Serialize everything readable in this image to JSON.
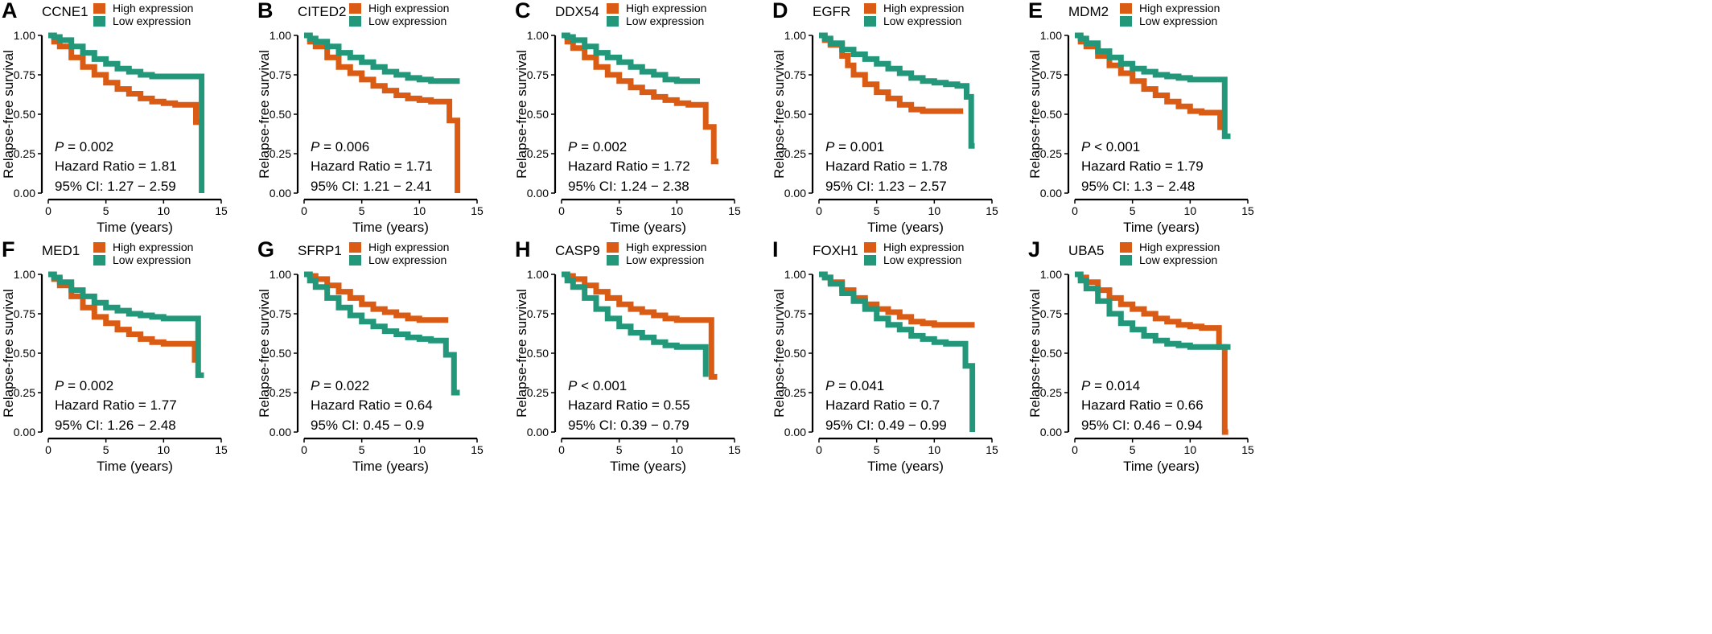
{
  "colors": {
    "high": "#DA5B14",
    "low": "#23977A",
    "axis": "#000000"
  },
  "axes": {
    "xlabel": "Time (years)",
    "ylabel": "Relapse-free survival",
    "xticks": [
      "0",
      "5",
      "10",
      "15"
    ],
    "yticks": [
      "0.00",
      "0.25",
      "0.50",
      "0.75",
      "1.00"
    ]
  },
  "chart_data": [
    {
      "type": "line",
      "panel": "A",
      "gene": "CCNE1",
      "xlabel": "Time (years)",
      "ylabel": "Relapse-free survival",
      "xlim": [
        0,
        15
      ],
      "ylim": [
        0,
        1
      ],
      "grid": false,
      "legend_position": "top",
      "legend": {
        "high": "High expression",
        "low": "Low expression"
      },
      "stats": {
        "p": "P = 0.002",
        "hr": "Hazard Ratio = 1.81",
        "ci": "95% CI: 1.27 − 2.59"
      },
      "series": [
        {
          "name": "High expression",
          "x": [
            0,
            0.5,
            1,
            2,
            3,
            4,
            5,
            6,
            7,
            8,
            9,
            10,
            11,
            12,
            12.5,
            12.8,
            13.5
          ],
          "y": [
            1,
            0.96,
            0.93,
            0.86,
            0.8,
            0.75,
            0.7,
            0.66,
            0.63,
            0.6,
            0.58,
            0.57,
            0.56,
            0.56,
            0.56,
            0.45,
            0.45
          ]
        },
        {
          "name": "Low expression",
          "x": [
            0,
            0.5,
            1,
            2,
            3,
            4,
            5,
            6,
            7,
            8,
            9,
            10,
            11,
            12,
            13,
            13.3,
            13.3
          ],
          "y": [
            1,
            0.99,
            0.97,
            0.93,
            0.89,
            0.85,
            0.82,
            0.79,
            0.77,
            0.75,
            0.74,
            0.74,
            0.74,
            0.74,
            0.74,
            0.74,
            0
          ]
        }
      ]
    },
    {
      "type": "line",
      "panel": "B",
      "gene": "CITED2",
      "xlabel": "Time (years)",
      "ylabel": "Relapse-free survival",
      "xlim": [
        0,
        15
      ],
      "ylim": [
        0,
        1
      ],
      "grid": false,
      "legend_position": "top",
      "legend": {
        "high": "High expression",
        "low": "Low expression"
      },
      "stats": {
        "p": "P = 0.006",
        "hr": "Hazard Ratio = 1.71",
        "ci": "95% CI: 1.21 − 2.41"
      },
      "series": [
        {
          "name": "High expression",
          "x": [
            0,
            0.5,
            1,
            2,
            3,
            4,
            5,
            6,
            7,
            8,
            9,
            10,
            11,
            12,
            12.6,
            12.6,
            13.3,
            13.3
          ],
          "y": [
            1,
            0.96,
            0.93,
            0.86,
            0.8,
            0.76,
            0.72,
            0.68,
            0.65,
            0.62,
            0.6,
            0.59,
            0.58,
            0.58,
            0.58,
            0.46,
            0.46,
            0
          ]
        },
        {
          "name": "Low expression",
          "x": [
            0,
            0.5,
            1,
            2,
            3,
            4,
            5,
            6,
            7,
            8,
            9,
            10,
            11,
            12,
            13,
            13.5
          ],
          "y": [
            1,
            0.98,
            0.96,
            0.93,
            0.89,
            0.86,
            0.83,
            0.8,
            0.77,
            0.75,
            0.73,
            0.72,
            0.71,
            0.71,
            0.71,
            0.71
          ]
        }
      ]
    },
    {
      "type": "line",
      "panel": "C",
      "gene": "DDX54",
      "xlabel": "Time (years)",
      "ylabel": "Relapse-free survival",
      "xlim": [
        0,
        15
      ],
      "ylim": [
        0,
        1
      ],
      "grid": false,
      "legend_position": "top",
      "legend": {
        "high": "High expression",
        "low": "Low expression"
      },
      "stats": {
        "p": "P = 0.002",
        "hr": "Hazard Ratio = 1.72",
        "ci": "95% CI: 1.24 − 2.38"
      },
      "series": [
        {
          "name": "High expression",
          "x": [
            0,
            0.5,
            1,
            2,
            3,
            4,
            5,
            6,
            7,
            8,
            9,
            10,
            11,
            12,
            12.5,
            12.5,
            13.2,
            13.2,
            13.6
          ],
          "y": [
            1,
            0.96,
            0.92,
            0.86,
            0.8,
            0.75,
            0.71,
            0.67,
            0.64,
            0.61,
            0.59,
            0.57,
            0.56,
            0.56,
            0.56,
            0.42,
            0.42,
            0.2,
            0.2
          ]
        },
        {
          "name": "Low expression",
          "x": [
            0,
            0.5,
            1,
            2,
            3,
            4,
            5,
            6,
            7,
            8,
            9,
            10,
            11,
            12
          ],
          "y": [
            1,
            0.99,
            0.97,
            0.93,
            0.89,
            0.86,
            0.83,
            0.8,
            0.77,
            0.75,
            0.72,
            0.71,
            0.71,
            0.71
          ]
        }
      ]
    },
    {
      "type": "line",
      "panel": "D",
      "gene": "EGFR",
      "xlabel": "Time (years)",
      "ylabel": "Relapse-free survival",
      "xlim": [
        0,
        15
      ],
      "ylim": [
        0,
        1
      ],
      "grid": false,
      "legend_position": "top",
      "legend": {
        "high": "High expression",
        "low": "Low expression"
      },
      "stats": {
        "p": "P = 0.001",
        "hr": "Hazard Ratio = 1.78",
        "ci": "95% CI: 1.23 − 2.57"
      },
      "series": [
        {
          "name": "High expression",
          "x": [
            0,
            0.5,
            1,
            2,
            2.5,
            3,
            4,
            5,
            6,
            7,
            8,
            9,
            10,
            11,
            12.5
          ],
          "y": [
            1,
            0.97,
            0.94,
            0.87,
            0.81,
            0.75,
            0.69,
            0.64,
            0.6,
            0.56,
            0.53,
            0.52,
            0.52,
            0.52,
            0.52
          ]
        },
        {
          "name": "Low expression",
          "x": [
            0,
            0.5,
            1,
            2,
            3,
            4,
            5,
            6,
            7,
            8,
            9,
            10,
            11,
            12,
            12.8,
            12.8,
            13.2,
            13.2,
            13.5
          ],
          "y": [
            1,
            0.98,
            0.95,
            0.91,
            0.88,
            0.85,
            0.82,
            0.79,
            0.76,
            0.73,
            0.71,
            0.7,
            0.69,
            0.68,
            0.68,
            0.61,
            0.61,
            0.3,
            0.3
          ]
        }
      ]
    },
    {
      "type": "line",
      "panel": "E",
      "gene": "MDM2",
      "xlabel": "Time (years)",
      "ylabel": "Relapse-free survival",
      "xlim": [
        0,
        15
      ],
      "ylim": [
        0,
        1
      ],
      "grid": false,
      "legend_position": "top",
      "legend": {
        "high": "High expression",
        "low": "Low expression"
      },
      "stats": {
        "p": "P < 0.001",
        "hr": "Hazard Ratio = 1.79",
        "ci": "95% CI: 1.3 − 2.48"
      },
      "series": [
        {
          "name": "High expression",
          "x": [
            0,
            0.5,
            1,
            2,
            3,
            4,
            5,
            6,
            7,
            8,
            9,
            10,
            11,
            12,
            12.6
          ],
          "y": [
            1,
            0.96,
            0.93,
            0.87,
            0.81,
            0.76,
            0.71,
            0.66,
            0.62,
            0.58,
            0.55,
            0.52,
            0.51,
            0.51,
            0.4
          ]
        },
        {
          "name": "Low expression",
          "x": [
            0,
            0.5,
            1,
            2,
            3,
            4,
            5,
            6,
            7,
            8,
            9,
            10,
            11,
            12,
            13,
            13,
            13.5
          ],
          "y": [
            1,
            0.98,
            0.95,
            0.9,
            0.86,
            0.82,
            0.79,
            0.77,
            0.75,
            0.74,
            0.73,
            0.72,
            0.72,
            0.72,
            0.72,
            0.36,
            0.36
          ]
        }
      ]
    },
    {
      "type": "line",
      "panel": "F",
      "gene": "MED1",
      "xlabel": "Time (years)",
      "ylabel": "Relapse-free survival",
      "xlim": [
        0,
        15
      ],
      "ylim": [
        0,
        1
      ],
      "grid": false,
      "legend_position": "top",
      "legend": {
        "high": "High expression",
        "low": "Low expression"
      },
      "stats": {
        "p": "P = 0.002",
        "hr": "Hazard Ratio = 1.77",
        "ci": "95% CI: 1.26 − 2.48"
      },
      "series": [
        {
          "name": "High expression",
          "x": [
            0,
            0.5,
            1,
            2,
            3,
            4,
            5,
            6,
            7,
            8,
            9,
            10,
            11,
            12,
            12.7
          ],
          "y": [
            1,
            0.97,
            0.93,
            0.86,
            0.79,
            0.73,
            0.69,
            0.65,
            0.62,
            0.59,
            0.57,
            0.56,
            0.56,
            0.56,
            0.44
          ]
        },
        {
          "name": "Low expression",
          "x": [
            0,
            0.5,
            1,
            2,
            3,
            4,
            5,
            6,
            7,
            8,
            9,
            10,
            11,
            12,
            13,
            13,
            13.5
          ],
          "y": [
            1,
            0.98,
            0.95,
            0.9,
            0.86,
            0.82,
            0.79,
            0.77,
            0.75,
            0.74,
            0.73,
            0.72,
            0.72,
            0.72,
            0.72,
            0.36,
            0.36
          ]
        }
      ]
    },
    {
      "type": "line",
      "panel": "G",
      "gene": "SFRP1",
      "xlabel": "Time (years)",
      "ylabel": "Relapse-free survival",
      "xlim": [
        0,
        15
      ],
      "ylim": [
        0,
        1
      ],
      "grid": false,
      "legend_position": "top",
      "legend": {
        "high": "High expression",
        "low": "Low expression"
      },
      "stats": {
        "p": "P = 0.022",
        "hr": "Hazard Ratio = 0.64",
        "ci": "95% CI: 0.45 − 0.9"
      },
      "series": [
        {
          "name": "High expression",
          "x": [
            0,
            0.5,
            1,
            2,
            3,
            4,
            5,
            6,
            7,
            8,
            9,
            10,
            11,
            12.5
          ],
          "y": [
            1,
            0.99,
            0.97,
            0.93,
            0.89,
            0.85,
            0.81,
            0.78,
            0.76,
            0.74,
            0.72,
            0.71,
            0.71,
            0.71
          ]
        },
        {
          "name": "Low expression",
          "x": [
            0,
            0.5,
            1,
            2,
            3,
            4,
            5,
            6,
            7,
            8,
            9,
            10,
            11,
            12,
            12.3,
            12.3,
            13,
            13,
            13.5
          ],
          "y": [
            1,
            0.96,
            0.92,
            0.85,
            0.79,
            0.74,
            0.7,
            0.67,
            0.64,
            0.62,
            0.6,
            0.59,
            0.58,
            0.58,
            0.58,
            0.49,
            0.49,
            0.25,
            0.25
          ]
        }
      ]
    },
    {
      "type": "line",
      "panel": "H",
      "gene": "CASP9",
      "xlabel": "Time (years)",
      "ylabel": "Relapse-free survival",
      "xlim": [
        0,
        15
      ],
      "ylim": [
        0,
        1
      ],
      "grid": false,
      "legend_position": "top",
      "legend": {
        "high": "High expression",
        "low": "Low expression"
      },
      "stats": {
        "p": "P < 0.001",
        "hr": "Hazard Ratio = 0.55",
        "ci": "95% CI: 0.39 − 0.79"
      },
      "series": [
        {
          "name": "High expression",
          "x": [
            0,
            0.5,
            1,
            2,
            3,
            4,
            5,
            6,
            7,
            8,
            9,
            10,
            11,
            12,
            13,
            13,
            13.5
          ],
          "y": [
            1,
            0.99,
            0.97,
            0.93,
            0.89,
            0.85,
            0.81,
            0.78,
            0.76,
            0.74,
            0.72,
            0.71,
            0.71,
            0.71,
            0.71,
            0.35,
            0.35
          ]
        },
        {
          "name": "Low expression",
          "x": [
            0,
            0.5,
            1,
            2,
            3,
            4,
            5,
            6,
            7,
            8,
            9,
            10,
            11,
            12,
            12.5,
            12.5
          ],
          "y": [
            1,
            0.96,
            0.92,
            0.85,
            0.78,
            0.72,
            0.67,
            0.63,
            0.6,
            0.57,
            0.55,
            0.54,
            0.54,
            0.54,
            0.54,
            0.35
          ]
        }
      ]
    },
    {
      "type": "line",
      "panel": "I",
      "gene": "FOXH1",
      "xlabel": "Time (years)",
      "ylabel": "Relapse-free survival",
      "xlim": [
        0,
        15
      ],
      "ylim": [
        0,
        1
      ],
      "grid": false,
      "legend_position": "top",
      "legend": {
        "high": "High expression",
        "low": "Low expression"
      },
      "stats": {
        "p": "P = 0.041",
        "hr": "Hazard Ratio = 0.7",
        "ci": "95% CI: 0.49 − 0.99"
      },
      "series": [
        {
          "name": "High expression",
          "x": [
            0,
            0.5,
            1,
            2,
            3,
            4,
            5,
            6,
            7,
            8,
            9,
            10,
            11,
            12,
            13.5
          ],
          "y": [
            1,
            0.98,
            0.95,
            0.9,
            0.85,
            0.81,
            0.78,
            0.76,
            0.73,
            0.7,
            0.69,
            0.68,
            0.68,
            0.68,
            0.68
          ]
        },
        {
          "name": "Low expression",
          "x": [
            0,
            0.5,
            1,
            2,
            3,
            4,
            5,
            6,
            7,
            8,
            9,
            10,
            11,
            12,
            12.7,
            12.7,
            13.3,
            13.3
          ],
          "y": [
            1,
            0.98,
            0.94,
            0.88,
            0.83,
            0.78,
            0.72,
            0.68,
            0.65,
            0.61,
            0.59,
            0.57,
            0.56,
            0.56,
            0.56,
            0.42,
            0.42,
            0
          ]
        }
      ]
    },
    {
      "type": "line",
      "panel": "J",
      "gene": "UBA5",
      "xlabel": "Time (years)",
      "ylabel": "Relapse-free survival",
      "xlim": [
        0,
        15
      ],
      "ylim": [
        0,
        1
      ],
      "grid": false,
      "legend_position": "top",
      "legend": {
        "high": "High expression",
        "low": "Low expression"
      },
      "stats": {
        "p": "P = 0.014",
        "hr": "Hazard Ratio = 0.66",
        "ci": "95% CI: 0.46 − 0.94"
      },
      "series": [
        {
          "name": "High expression",
          "x": [
            0,
            0.5,
            1,
            2,
            3,
            4,
            5,
            6,
            7,
            8,
            9,
            10,
            11,
            12,
            12.5,
            12.5,
            13,
            13,
            13.3
          ],
          "y": [
            1,
            0.98,
            0.95,
            0.9,
            0.85,
            0.81,
            0.78,
            0.75,
            0.72,
            0.7,
            0.68,
            0.67,
            0.66,
            0.66,
            0.66,
            0.54,
            0.54,
            0,
            0
          ]
        },
        {
          "name": "Low expression",
          "x": [
            0,
            0.5,
            1,
            2,
            3,
            4,
            5,
            6,
            7,
            8,
            9,
            10,
            11,
            12,
            13.5
          ],
          "y": [
            1,
            0.96,
            0.91,
            0.83,
            0.75,
            0.69,
            0.65,
            0.61,
            0.58,
            0.56,
            0.55,
            0.54,
            0.54,
            0.54,
            0.54
          ]
        }
      ]
    }
  ]
}
